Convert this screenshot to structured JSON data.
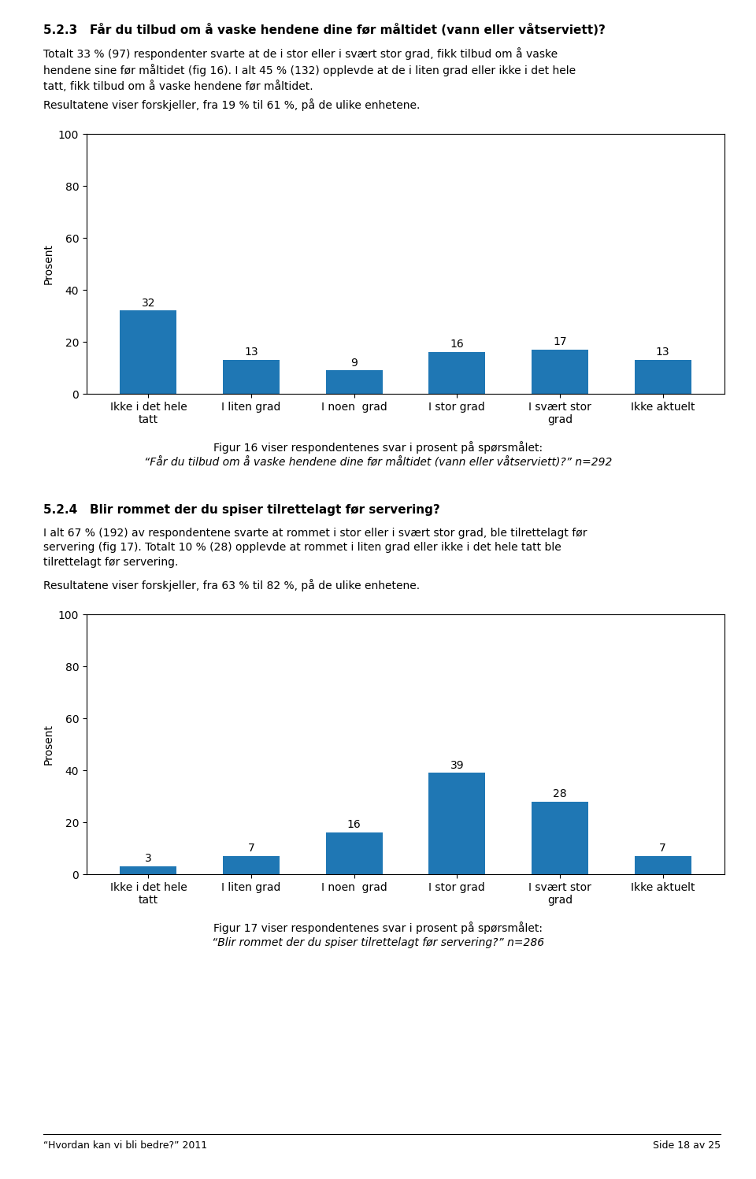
{
  "chart_data": [
    {
      "type": "bar",
      "title": "5.2.3   Får du tilbud om å vaske hendene dine før måltidet (vann eller våtserviett)?",
      "annotations": [
        "Totalt 33 % (97) respondenter svarte at de i stor eller i svært stor grad, fikk tilbud om å vaske\nhendene sine før måltidet (fig 16). I alt 45 % (132) opplevde at de i liten grad eller ikke i det hele\ntatt, fikk tilbud om å vaske hendene før måltidet.",
        "Resultatene viser forskjeller, fra 19 % til 61 %, på de ulike enhetene.",
        "Figur 16 viser respondentenes svar i prosent på spørsmålet:",
        "“Får du tilbud om å vaske hendene dine før måltidet (vann eller våtserviett)?” n=292"
      ],
      "categories": [
        "Ikke i det hele\ntatt",
        "I liten grad",
        "I noen  grad",
        "I stor grad",
        "I svært stor\ngrad",
        "Ikke aktuelt"
      ],
      "values": [
        32,
        13,
        9,
        16,
        17,
        13
      ],
      "y_label": "Prosent",
      "ylim": [
        0,
        100
      ],
      "yticks": [
        0,
        20,
        40,
        60,
        80,
        100
      ],
      "data_labels": true
    },
    {
      "type": "bar",
      "title": "5.2.4   Blir rommet der du spiser tilrettelagt før servering?",
      "annotations": [
        "I alt 67 % (192) av respondentene svarte at rommet i stor eller i svært stor grad, ble tilrettelagt før\nservering (fig 17). Totalt 10 % (28) opplevde at rommet i liten grad eller ikke i det hele tatt ble\ntilrettelagt før servering.",
        "Resultatene viser forskjeller, fra 63 % til 82 %, på de ulike enhetene.",
        "Figur 17 viser respondentenes svar i prosent på spørsmålet:",
        "“Blir rommet der du spiser tilrettelagt før servering?” n=286"
      ],
      "categories": [
        "Ikke i det hele\ntatt",
        "I liten grad",
        "I noen  grad",
        "I stor grad",
        "I svært stor\ngrad",
        "Ikke aktuelt"
      ],
      "values": [
        3,
        7,
        16,
        39,
        28,
        7
      ],
      "y_label": "Prosent",
      "ylim": [
        0,
        100
      ],
      "yticks": [
        0,
        20,
        40,
        60,
        80,
        100
      ],
      "data_labels": true
    }
  ],
  "annotations": [
    "“Hvordan kan vi bli bedre?” 2011",
    "Side 18 av 25"
  ]
}
